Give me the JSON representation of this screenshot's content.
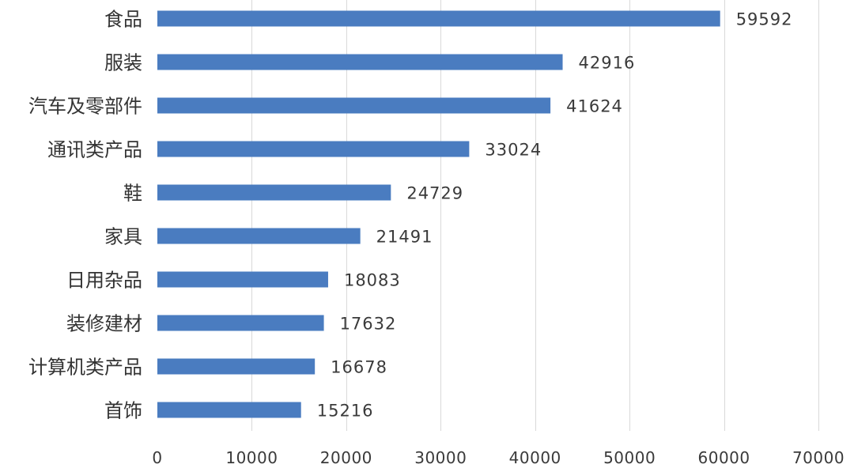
{
  "chart_data": {
    "type": "bar",
    "orientation": "horizontal",
    "title": "",
    "xlabel": "",
    "ylabel": "",
    "xlim": [
      0,
      70000
    ],
    "x_ticks": [
      0,
      10000,
      20000,
      30000,
      40000,
      50000,
      60000,
      70000
    ],
    "x_tick_labels": [
      "0",
      "10000",
      "20000",
      "30000",
      "40000",
      "50000",
      "60000",
      "70000"
    ],
    "grid": true,
    "legend": "none",
    "bar_color": "#4a7cc0",
    "categories": [
      "食品",
      "服装",
      "汽车及零部件",
      "通讯类产品",
      "鞋",
      "家具",
      "日用杂品",
      "装修建材",
      "计算机类产品",
      "首饰"
    ],
    "values": [
      59592,
      42916,
      41624,
      33024,
      24729,
      21491,
      18083,
      17632,
      16678,
      15216
    ],
    "data_labels": [
      "59592",
      "42916",
      "41624",
      "33024",
      "24729",
      "21491",
      "18083",
      "17632",
      "16678",
      "15216"
    ]
  }
}
